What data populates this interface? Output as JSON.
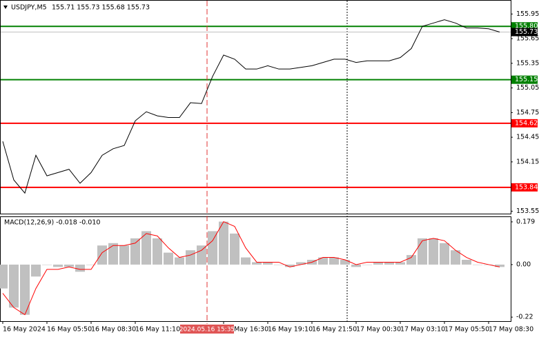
{
  "chart_data": [
    {
      "type": "line",
      "title": "USDJPY,M5",
      "subtitle": "155.71 155.73 155.68 155.73",
      "color": "#000000",
      "values": [
        154.4,
        153.93,
        153.77,
        154.23,
        153.98,
        154.02,
        154.06,
        153.89,
        154.02,
        154.23,
        154.31,
        154.35,
        154.65,
        154.76,
        154.71,
        154.69,
        154.69,
        154.87,
        154.86,
        155.19,
        155.45,
        155.4,
        155.28,
        155.28,
        155.32,
        155.28,
        155.28,
        155.3,
        155.32,
        155.36,
        155.4,
        155.4,
        155.36,
        155.38,
        155.38,
        155.38,
        155.42,
        155.53,
        155.8,
        155.84,
        155.88,
        155.84,
        155.78,
        155.78,
        155.77,
        155.73
      ],
      "ylim": [
        153.52,
        156.07
      ],
      "yticks": [
        155.95,
        155.65,
        155.35,
        155.05,
        154.75,
        154.45,
        154.15,
        153.55
      ],
      "levels": [
        {
          "value": 155.8,
          "label": "155.80",
          "color": "#008000"
        },
        {
          "value": 155.15,
          "label": "155.15",
          "color": "#008000"
        },
        {
          "value": 154.62,
          "label": "154.62",
          "color": "#ff0000"
        },
        {
          "value": 153.84,
          "label": "153.84",
          "color": "#ff0000"
        }
      ],
      "current_price": 155.73
    },
    {
      "type": "macd",
      "title": "MACD(12,26,9) -0.018 -0.010",
      "categories": [
        "16 May 2024",
        null,
        null,
        null,
        "16 May 05:50",
        null,
        null,
        null,
        "16 May 08:30",
        null,
        null,
        null,
        "16 May 11:10",
        null,
        null,
        null,
        null,
        null,
        null,
        null,
        "16 May 16:30",
        null,
        null,
        null,
        "16 May 19:10",
        null,
        null,
        null,
        "16 May 21:50",
        null,
        null,
        null,
        "17 May 00:30",
        null,
        null,
        null,
        "17 May 03:10",
        null,
        null,
        null,
        "17 May 05:50",
        null,
        null,
        null,
        "17 May 08:30",
        null
      ],
      "cursor_label": "2024.05.16 15:35",
      "histogram": {
        "color": "#c0c0c0",
        "values": [
          -0.1,
          -0.18,
          -0.21,
          -0.05,
          0.0,
          -0.01,
          -0.01,
          -0.03,
          0.0,
          0.08,
          0.09,
          0.08,
          0.11,
          0.14,
          0.11,
          0.05,
          0.03,
          0.06,
          0.08,
          0.14,
          0.18,
          0.13,
          0.03,
          0.01,
          0.01,
          0.0,
          -0.01,
          0.01,
          0.02,
          0.03,
          0.03,
          0.02,
          -0.01,
          0.0,
          0.01,
          0.01,
          0.01,
          0.04,
          0.11,
          0.11,
          0.09,
          0.06,
          0.02,
          0.0,
          0.0,
          -0.01
        ]
      },
      "signal": {
        "color": "#ff0000",
        "values": [
          -0.12,
          -0.18,
          -0.21,
          -0.1,
          -0.02,
          -0.02,
          -0.01,
          -0.02,
          -0.02,
          0.05,
          0.08,
          0.08,
          0.09,
          0.13,
          0.12,
          0.07,
          0.03,
          0.04,
          0.06,
          0.1,
          0.18,
          0.16,
          0.07,
          0.01,
          0.01,
          0.01,
          -0.01,
          0.0,
          0.01,
          0.03,
          0.03,
          0.02,
          0.0,
          0.01,
          0.01,
          0.01,
          0.01,
          0.03,
          0.1,
          0.11,
          0.1,
          0.06,
          0.03,
          0.01,
          0.0,
          -0.01
        ]
      },
      "ylim": [
        -0.234,
        0.199
      ],
      "yticks": [
        0.179,
        {
          "value": 0,
          "label": "0.00"
        },
        -0.22
      ]
    }
  ]
}
